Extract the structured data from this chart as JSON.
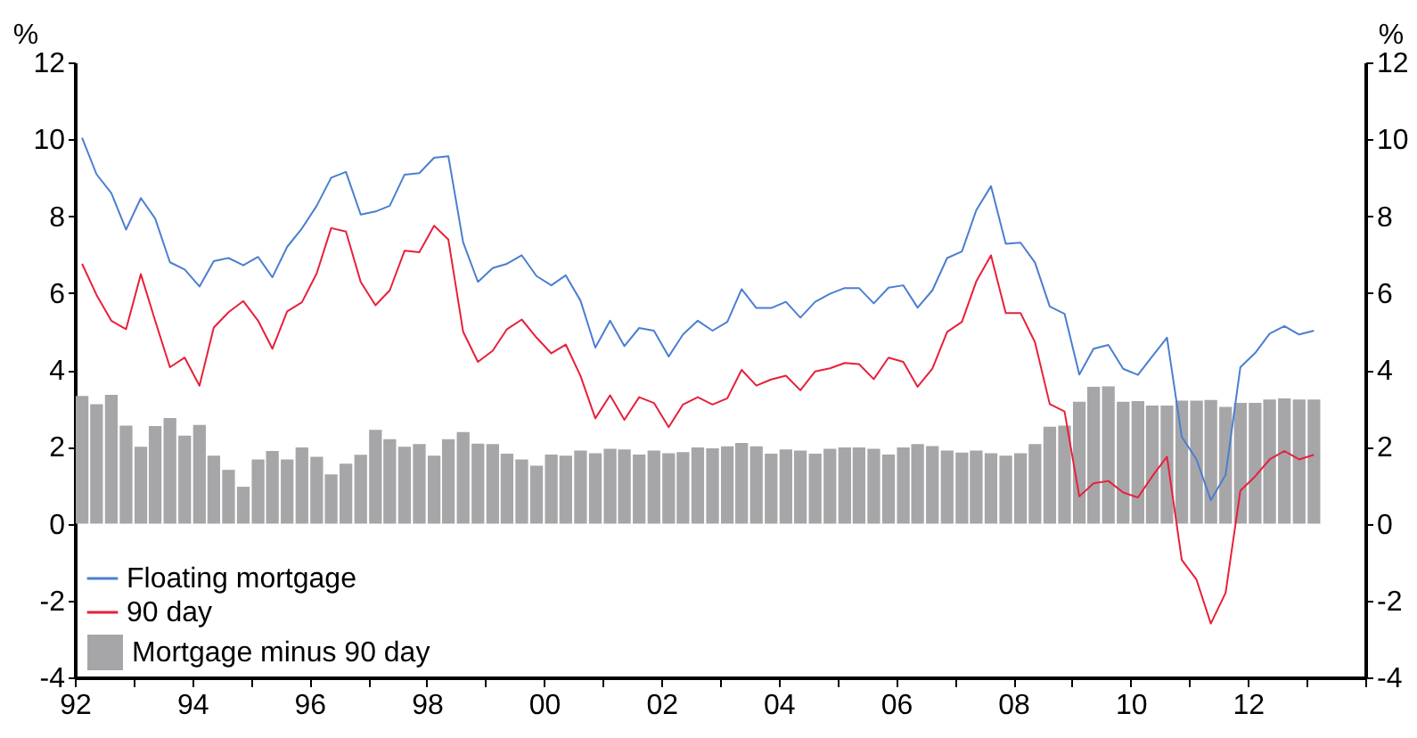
{
  "chart_data": {
    "type": "bar",
    "ylabel": "%",
    "y2label": "%",
    "x": [
      "1992-02-15",
      "1992-05-15",
      "1992-08-15",
      "1992-11-15",
      "1993-02-15",
      "1993-05-15",
      "1993-08-15",
      "1993-11-15",
      "1994-02-15",
      "1994-05-15",
      "1994-08-15",
      "1994-11-15",
      "1995-02-15",
      "1995-05-15",
      "1995-08-15",
      "1995-11-15",
      "1996-02-15",
      "1996-05-15",
      "1996-08-15",
      "1996-11-15",
      "1997-02-15",
      "1997-05-15",
      "1997-08-15",
      "1997-11-15",
      "1998-02-15",
      "1998-05-15",
      "1998-08-15",
      "1998-11-15",
      "1999-02-15",
      "1999-05-15",
      "1999-08-15",
      "1999-11-15",
      "2000-02-15",
      "2000-05-15",
      "2000-08-15",
      "2000-11-15",
      "2001-02-15",
      "2001-05-15",
      "2001-08-15",
      "2001-11-15",
      "2002-02-15",
      "2002-05-15",
      "2002-08-15",
      "2002-11-15",
      "2003-02-15",
      "2003-05-15",
      "2003-08-15",
      "2003-11-15",
      "2004-02-15",
      "2004-05-15",
      "2004-08-15",
      "2004-11-15",
      "2005-02-15",
      "2005-05-15",
      "2005-08-15",
      "2005-11-15",
      "2006-02-15",
      "2006-05-15",
      "2006-08-15",
      "2006-11-15",
      "2007-02-15",
      "2007-05-15",
      "2007-08-15",
      "2007-11-15",
      "2008-02-15",
      "2008-05-15",
      "2008-08-15",
      "2008-11-15",
      "2009-02-15",
      "2009-05-15",
      "2009-08-15",
      "2009-11-15",
      "2010-02-15",
      "2010-05-15",
      "2010-08-15",
      "2010-11-15",
      "2011-02-15",
      "2011-05-15",
      "2011-08-15",
      "2011-11-15",
      "2012-02-15",
      "2012-05-15",
      "2012-08-15",
      "2012-11-15",
      "2013-02-15"
    ],
    "series": [
      {
        "name": "Floating mortgage",
        "type": "line",
        "color": "#4a7fd0",
        "values": [
          10.04,
          9.09,
          8.6,
          7.65,
          8.47,
          7.94,
          6.8,
          6.61,
          6.17,
          6.83,
          6.91,
          6.72,
          6.94,
          6.41,
          7.2,
          7.68,
          8.27,
          9.0,
          9.15,
          8.04,
          8.12,
          8.27,
          9.08,
          9.12,
          9.52,
          9.56,
          7.32,
          6.29,
          6.65,
          6.76,
          6.98,
          6.44,
          6.2,
          6.46,
          5.8,
          4.58,
          5.28,
          4.62,
          5.09,
          5.02,
          4.35,
          4.92,
          5.28,
          5.02,
          5.25,
          6.1,
          5.61,
          5.61,
          5.77,
          5.36,
          5.77,
          5.98,
          6.13,
          6.13,
          5.73,
          6.14,
          6.2,
          5.62,
          6.07,
          6.91,
          7.08,
          8.15,
          8.78,
          7.28,
          7.31,
          6.79,
          5.65,
          5.46,
          3.88,
          4.55,
          4.65,
          4.03,
          3.87,
          4.35,
          4.84,
          2.26,
          1.67,
          0.61,
          1.27,
          4.07,
          4.44,
          4.94,
          5.14,
          4.92,
          5.02
        ]
      },
      {
        "name": "90 day",
        "type": "line",
        "color": "#e8203a",
        "values": [
          6.76,
          5.95,
          5.28,
          5.06,
          6.49,
          5.28,
          4.07,
          4.32,
          3.59,
          5.1,
          5.5,
          5.79,
          5.28,
          4.55,
          5.52,
          5.76,
          6.51,
          7.69,
          7.6,
          6.29,
          5.68,
          6.07,
          7.1,
          7.06,
          7.75,
          7.39,
          4.99,
          4.21,
          4.5,
          5.06,
          5.31,
          4.84,
          4.43,
          4.66,
          3.84,
          2.74,
          3.34,
          2.7,
          3.29,
          3.14,
          2.51,
          3.1,
          3.29,
          3.1,
          3.26,
          4.0,
          3.59,
          3.75,
          3.85,
          3.47,
          3.96,
          4.04,
          4.18,
          4.15,
          3.76,
          4.32,
          4.21,
          3.56,
          4.03,
          4.99,
          5.25,
          6.3,
          6.98,
          5.48,
          5.48,
          4.72,
          3.11,
          2.92,
          0.71,
          1.05,
          1.11,
          0.81,
          0.68,
          1.23,
          1.74,
          -0.94,
          -1.46,
          -2.6,
          -1.8,
          0.86,
          1.23,
          1.67,
          1.89,
          1.67,
          1.79
        ]
      },
      {
        "name": "Mortgage minus 90 day",
        "color": "#a6a6a9",
        "values": [
          3.32,
          3.11,
          3.35,
          2.55,
          2.0,
          2.54,
          2.75,
          2.29,
          2.57,
          1.77,
          1.4,
          0.96,
          1.67,
          1.89,
          1.67,
          1.98,
          1.74,
          1.28,
          1.56,
          1.79,
          2.44,
          2.2,
          2.0,
          2.07,
          1.77,
          2.2,
          2.38,
          2.08,
          2.07,
          1.82,
          1.67,
          1.51,
          1.8,
          1.77,
          1.9,
          1.83,
          1.95,
          1.93,
          1.8,
          1.9,
          1.83,
          1.86,
          1.98,
          1.96,
          2.01,
          2.1,
          2.01,
          1.82,
          1.93,
          1.9,
          1.82,
          1.95,
          1.98,
          1.98,
          1.95,
          1.8,
          1.98,
          2.07,
          2.02,
          1.9,
          1.85,
          1.9,
          1.83,
          1.77,
          1.83,
          2.07,
          2.52,
          2.55,
          3.17,
          3.56,
          3.57,
          3.17,
          3.19,
          3.07,
          3.07,
          3.2,
          3.2,
          3.22,
          3.04,
          3.14,
          3.14,
          3.23,
          3.26,
          3.23,
          3.23
        ]
      }
    ],
    "xlim": [
      "1992-01-01",
      "2014-01-01"
    ],
    "xticks": [
      {
        "value": "1992-01-01",
        "label": "92"
      },
      {
        "value": "1993-01-01",
        "label": null
      },
      {
        "value": "1994-01-01",
        "label": "94"
      },
      {
        "value": "1995-01-01",
        "label": null
      },
      {
        "value": "1996-01-01",
        "label": "96"
      },
      {
        "value": "1997-01-01",
        "label": null
      },
      {
        "value": "1998-01-01",
        "label": "98"
      },
      {
        "value": "1999-01-01",
        "label": null
      },
      {
        "value": "2000-01-01",
        "label": "00"
      },
      {
        "value": "2001-01-01",
        "label": null
      },
      {
        "value": "2002-01-01",
        "label": "02"
      },
      {
        "value": "2003-01-01",
        "label": null
      },
      {
        "value": "2004-01-01",
        "label": "04"
      },
      {
        "value": "2005-01-01",
        "label": null
      },
      {
        "value": "2006-01-01",
        "label": "06"
      },
      {
        "value": "2007-01-01",
        "label": null
      },
      {
        "value": "2008-01-01",
        "label": "08"
      },
      {
        "value": "2009-01-01",
        "label": null
      },
      {
        "value": "2010-01-01",
        "label": "10"
      },
      {
        "value": "2011-01-01",
        "label": null
      },
      {
        "value": "2012-01-01",
        "label": "12"
      },
      {
        "value": "2013-01-01",
        "label": null
      },
      {
        "value": "2014-01-01",
        "label": null
      }
    ],
    "ylim": [
      -4,
      12
    ],
    "yticks": [
      -4,
      -2,
      0,
      2,
      4,
      6,
      8,
      10,
      12
    ],
    "y2lim": [
      -4,
      12
    ],
    "y2ticks": [
      -4,
      -2,
      0,
      2,
      4,
      6,
      8,
      10,
      12
    ],
    "grid": false,
    "legend": "bottom left",
    "line_style": "solid"
  }
}
